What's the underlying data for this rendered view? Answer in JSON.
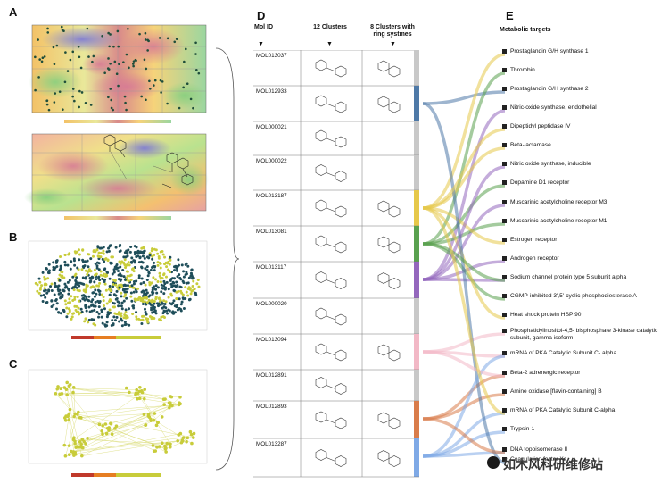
{
  "panels": {
    "A": {
      "label": "A"
    },
    "B": {
      "label": "B"
    },
    "C": {
      "label": "C"
    },
    "D": {
      "label": "D"
    },
    "E": {
      "label": "E"
    }
  },
  "table": {
    "headers": {
      "mol_id": "Mol ID",
      "clusters12": "12 Clusters",
      "clusters8": "8 Clusters with ring systmes"
    },
    "rows": [
      {
        "id": "MOL013037"
      },
      {
        "id": "MOL012933"
      },
      {
        "id": "MOL000021"
      },
      {
        "id": "MOL000022"
      },
      {
        "id": "MOL013187"
      },
      {
        "id": "MOL013081"
      },
      {
        "id": "MOL013117"
      },
      {
        "id": "MOL000020"
      },
      {
        "id": "MOL013094"
      },
      {
        "id": "MOL012891"
      },
      {
        "id": "MOL012893"
      },
      {
        "id": "MOL013287"
      }
    ],
    "bar_colors": [
      "#c8c8c8",
      "#4e79a7",
      "#c8c8c8",
      "#c8c8c8",
      "#e6c84a",
      "#59a14f",
      "#9467bd",
      "#c8c8c8",
      "#f2b8c6",
      "#c8c8c8",
      "#d97c4a",
      "#7fa9e6"
    ]
  },
  "targets": {
    "title": "Metabolic targets",
    "items": [
      "Prostaglandin G/H synthase 1",
      "Thrombin",
      "Prostaglandin G/H synthase 2",
      "Nitric-oxide synthase, endothelial",
      "Dipeptidyl peptidase IV",
      "Beta-lactamase",
      "Nitric oxide synthase, inducible",
      "Dopamine D1 receptor",
      "Muscarinic acetylcholine receptor M3",
      "Muscarinic acetylcholine receptor M1",
      "Estrogen receptor",
      "Androgen receptor",
      "Sodium channel protein type 5 subunit alpha",
      "CGMP-inhibited 3',5'-cyclic phosphodiesterase A",
      "Heat shock protein HSP 90",
      "Phosphatidylinositol-4,5- bisphosphate 3-kinase catalytic subunit, gamma isoform",
      "mRNA of PKA Catalytic Subunit C- alpha",
      "Beta-2 adrenergic receptor",
      "Amine oxidase [flavin-containing] B",
      "mRNA of PKA Catalytic Subunit C-alpha",
      "Trypsin-1",
      "DNA topoisomerase II",
      "Coagulation factor Xa"
    ]
  },
  "plots": {
    "A_top": {
      "ylabel": "SOM_Y",
      "xlabel": "SOM_X",
      "scale_label": "Structure Similarity (Fingerp)"
    },
    "A_bottom": {
      "ylabel": "SOM_Y",
      "xlabel": "SOM_X",
      "scale_label": "SOM_Y1"
    },
    "B": {
      "ylabel": "Neighbor Analysis Y",
      "xlabel": "Neighbor Analysis X",
      "scale_label": "Structure Similarity (Fingerp)",
      "scale_ticks": [
        "0",
        "0.25",
        "0.5",
        "0.75"
      ]
    },
    "C": {
      "ylabel": "Neighbor Analysis Y",
      "xlabel": "Neighbor Analysis X",
      "scale_label": "Structure Similarity (Fingerp)",
      "scale_ticks": [
        "0",
        "0.25",
        "0.5",
        "0.75"
      ]
    }
  },
  "watermark": "如木风科研维修站",
  "colors": {
    "heat_hot": "#d9534f",
    "heat_warm": "#f0ad4e",
    "heat_cool": "#9fd86b",
    "heat_cold": "#6a5acd",
    "node": "#c8cc3a",
    "node_dark": "#1f4e5a"
  }
}
